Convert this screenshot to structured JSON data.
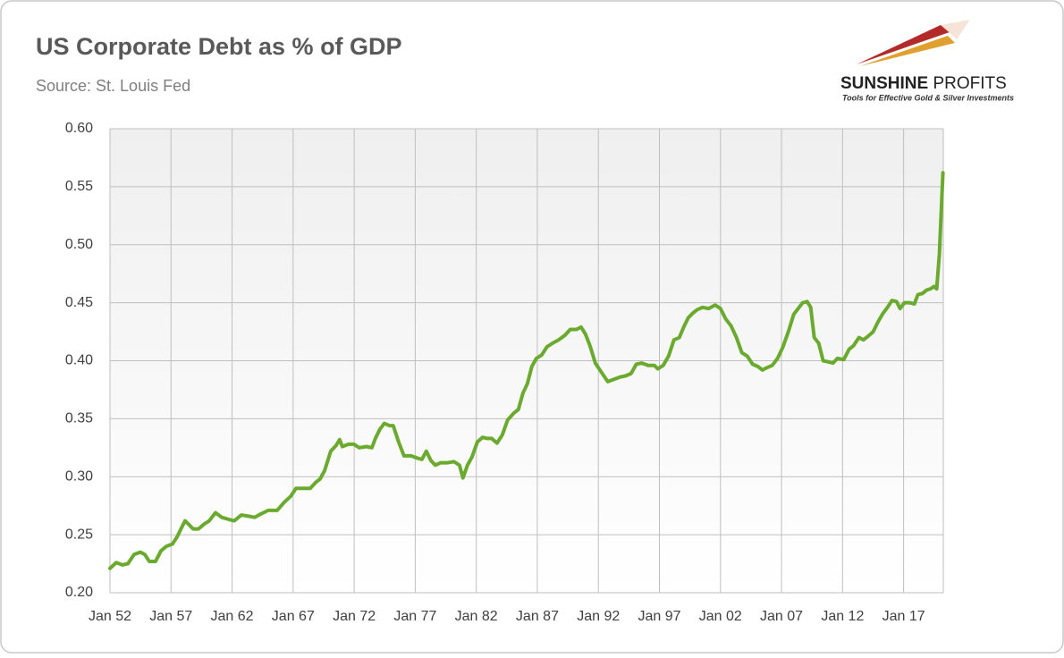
{
  "chart_data": {
    "type": "line",
    "title": "US Corporate Debt as % of GDP",
    "subtitle": "Source: St. Louis Fed",
    "x": [
      1952.0,
      1952.51,
      1953.02,
      1953.46,
      1953.98,
      1954.49,
      1954.85,
      1955.22,
      1955.73,
      1956.17,
      1956.61,
      1957.12,
      1957.49,
      1957.86,
      1958.15,
      1958.44,
      1958.81,
      1959.25,
      1959.69,
      1960.13,
      1960.64,
      1961.15,
      1961.81,
      1962.17,
      1962.76,
      1963.35,
      1963.86,
      1964.37,
      1964.96,
      1965.69,
      1966.27,
      1966.79,
      1967.23,
      1967.88,
      1968.4,
      1968.84,
      1969.2,
      1969.57,
      1970.08,
      1970.52,
      1970.81,
      1971.03,
      1971.54,
      1971.98,
      1972.42,
      1973.01,
      1973.45,
      1973.74,
      1974.11,
      1974.47,
      1974.91,
      1975.2,
      1975.64,
      1976.08,
      1976.67,
      1977.18,
      1977.55,
      1977.91,
      1978.28,
      1978.64,
      1979.08,
      1979.6,
      1980.18,
      1980.62,
      1980.91,
      1981.28,
      1981.65,
      1982.09,
      1982.52,
      1982.89,
      1983.26,
      1983.7,
      1984.13,
      1984.57,
      1985.09,
      1985.45,
      1985.82,
      1986.18,
      1986.55,
      1986.92,
      1987.36,
      1987.79,
      1988.23,
      1988.75,
      1989.26,
      1989.7,
      1990.21,
      1990.58,
      1990.94,
      1991.31,
      1991.75,
      1992.19,
      1992.77,
      1993.28,
      1993.8,
      1994.24,
      1994.68,
      1995.11,
      1995.55,
      1996.07,
      1996.58,
      1996.87,
      1997.31,
      1997.75,
      1998.19,
      1998.63,
      1998.99,
      1999.36,
      1999.73,
      2000.09,
      2000.53,
      2001.04,
      2001.56,
      2002.0,
      2002.43,
      2002.87,
      2003.31,
      2003.75,
      2004.19,
      2004.63,
      2005.07,
      2005.44,
      2005.8,
      2006.24,
      2006.68,
      2007.12,
      2007.56,
      2008.0,
      2008.44,
      2008.73,
      2009.1,
      2009.39,
      2009.68,
      2010.05,
      2010.41,
      2010.85,
      2011.22,
      2011.58,
      2012.1,
      2012.54,
      2012.9,
      2013.34,
      2013.71,
      2014.07,
      2014.51,
      2014.88,
      2015.32,
      2015.68,
      2016.05,
      2016.42,
      2016.71,
      2017.07,
      2017.51,
      2017.88,
      2018.17,
      2018.54,
      2018.9,
      2019.2,
      2019.49,
      2019.71,
      2019.93,
      2020.22
    ],
    "series": [
      {
        "name": "US Corporate Debt as % of GDP",
        "color": "#6aaa2e",
        "values": [
          0.221,
          0.226,
          0.224,
          0.225,
          0.233,
          0.235,
          0.233,
          0.227,
          0.227,
          0.236,
          0.24,
          0.242,
          0.248,
          0.256,
          0.262,
          0.259,
          0.255,
          0.255,
          0.259,
          0.262,
          0.269,
          0.265,
          0.263,
          0.262,
          0.267,
          0.266,
          0.265,
          0.268,
          0.271,
          0.271,
          0.278,
          0.283,
          0.29,
          0.29,
          0.29,
          0.295,
          0.298,
          0.305,
          0.322,
          0.327,
          0.332,
          0.326,
          0.328,
          0.328,
          0.325,
          0.326,
          0.325,
          0.333,
          0.341,
          0.346,
          0.344,
          0.344,
          0.33,
          0.318,
          0.318,
          0.316,
          0.315,
          0.322,
          0.314,
          0.31,
          0.312,
          0.312,
          0.313,
          0.31,
          0.299,
          0.31,
          0.317,
          0.33,
          0.334,
          0.333,
          0.333,
          0.329,
          0.336,
          0.349,
          0.355,
          0.358,
          0.372,
          0.38,
          0.395,
          0.402,
          0.405,
          0.412,
          0.415,
          0.418,
          0.422,
          0.427,
          0.427,
          0.429,
          0.423,
          0.413,
          0.398,
          0.391,
          0.382,
          0.384,
          0.386,
          0.387,
          0.389,
          0.397,
          0.398,
          0.396,
          0.396,
          0.393,
          0.396,
          0.404,
          0.418,
          0.42,
          0.429,
          0.437,
          0.441,
          0.444,
          0.446,
          0.445,
          0.448,
          0.445,
          0.436,
          0.43,
          0.42,
          0.407,
          0.404,
          0.397,
          0.395,
          0.392,
          0.394,
          0.396,
          0.402,
          0.412,
          0.425,
          0.44,
          0.446,
          0.45,
          0.451,
          0.446,
          0.42,
          0.415,
          0.4,
          0.399,
          0.398,
          0.402,
          0.401,
          0.41,
          0.413,
          0.42,
          0.418,
          0.421,
          0.425,
          0.433,
          0.441,
          0.446,
          0.452,
          0.451,
          0.445,
          0.45,
          0.45,
          0.449,
          0.457,
          0.458,
          0.461,
          0.462,
          0.464,
          0.462,
          0.492,
          0.562
        ]
      }
    ],
    "xlim": [
      1952,
      2020.25
    ],
    "xticks": [
      {
        "value": 1952,
        "label": "Jan 52"
      },
      {
        "value": 1957,
        "label": "Jan 57"
      },
      {
        "value": 1962,
        "label": "Jan 62"
      },
      {
        "value": 1967,
        "label": "Jan 67"
      },
      {
        "value": 1972,
        "label": "Jan 72"
      },
      {
        "value": 1977,
        "label": "Jan 77"
      },
      {
        "value": 1982,
        "label": "Jan 82"
      },
      {
        "value": 1987,
        "label": "Jan 87"
      },
      {
        "value": 1992,
        "label": "Jan 92"
      },
      {
        "value": 1997,
        "label": "Jan 97"
      },
      {
        "value": 2002,
        "label": "Jan 02"
      },
      {
        "value": 2007,
        "label": "Jan 07"
      },
      {
        "value": 2012,
        "label": "Jan 12"
      },
      {
        "value": 2017,
        "label": "Jan 17"
      }
    ],
    "ylim": [
      0.2,
      0.6
    ],
    "yticks": [
      {
        "value": 0.2,
        "label": "0.20"
      },
      0.25,
      {
        "value": 0.3,
        "label": "0.30"
      },
      0.35,
      {
        "value": 0.4,
        "label": "0.40"
      },
      0.45,
      {
        "value": 0.5,
        "label": "0.50"
      },
      0.55,
      {
        "value": 0.6,
        "label": "0.60"
      }
    ],
    "grid": true
  },
  "logo": {
    "brand_bold": "SUNSHINE",
    "brand_light": "PROFITS",
    "tagline": "Tools for Effective Gold & Silver Investments"
  }
}
